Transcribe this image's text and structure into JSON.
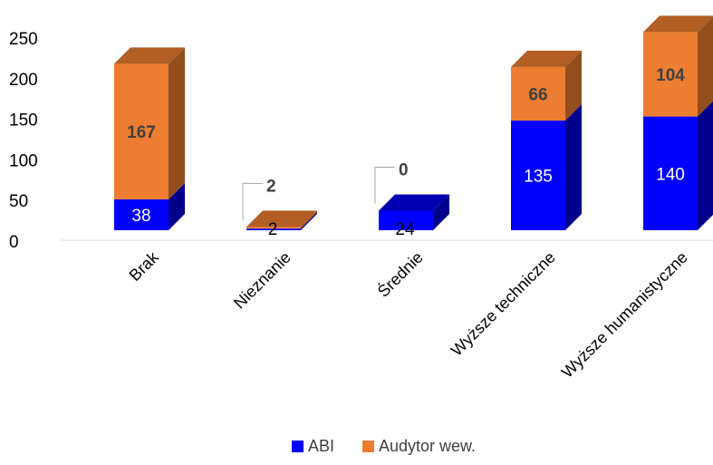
{
  "chart_data": {
    "type": "bar",
    "stacked": true,
    "style": "3d",
    "categories": [
      "Brak",
      "Nieznanie",
      "Średnie",
      "Wyższe techniczne",
      "Wyższe humanistyczne"
    ],
    "series": [
      {
        "name": "ABI",
        "values": [
          38,
          2,
          24,
          135,
          140
        ],
        "color": "#0000ff"
      },
      {
        "name": "Audytor wew.",
        "values": [
          167,
          2,
          0,
          66,
          104
        ],
        "color": "#ed7d31"
      }
    ],
    "y_ticks": [
      "0",
      "50",
      "100",
      "150",
      "200",
      "250"
    ],
    "ylim": [
      0,
      250
    ],
    "grid": false,
    "legend": "bottom-center"
  }
}
